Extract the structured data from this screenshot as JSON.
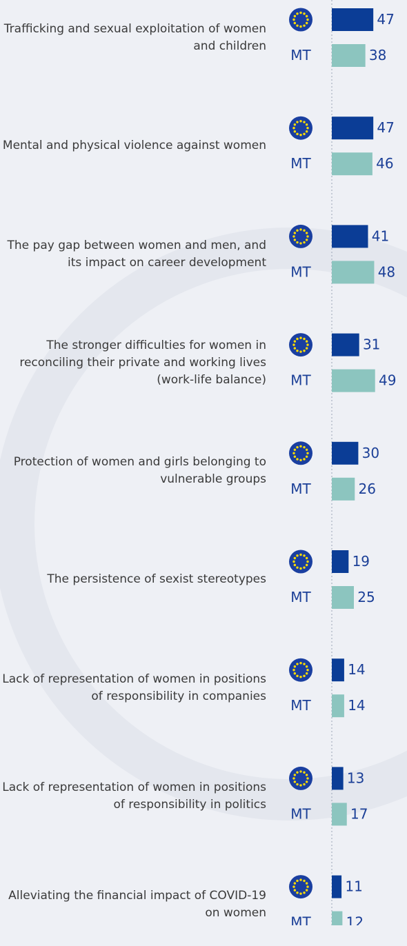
{
  "chart_data": {
    "type": "bar",
    "categories": [
      "Trafficking and sexual exploitation of women and children",
      "Mental and physical violence against women",
      "The pay gap between women and men, and its impact on career development",
      "The stronger difficulties for women in reconciling their private and working lives (work-life balance)",
      "Protection of women and girls belonging to vulnerable groups",
      "The persistence of sexist stereotypes",
      "Lack of representation of women in positions of responsibility in companies",
      "Lack of representation of women in positions of responsibility in politics",
      "Alleviating the financial impact of COVID-19 on women"
    ],
    "series": [
      {
        "color": "#0b3d96",
        "values": [
          47,
          47,
          41,
          31,
          30,
          19,
          14,
          13,
          11
        ]
      },
      {
        "name": "MT",
        "color": "#8cc5bf",
        "values": [
          38,
          46,
          48,
          49,
          26,
          25,
          14,
          17,
          12
        ]
      }
    ]
  }
}
